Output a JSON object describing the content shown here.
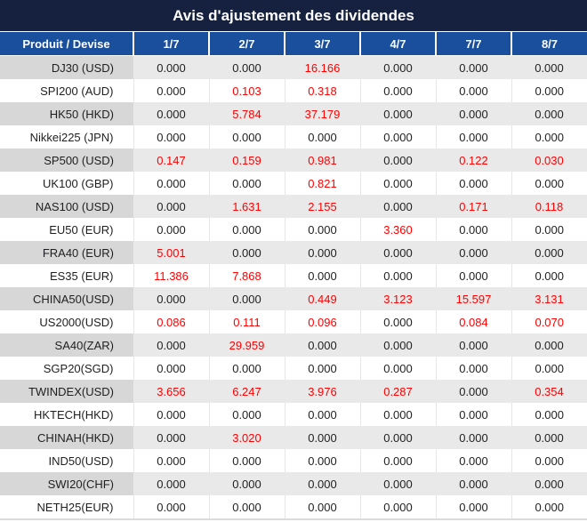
{
  "title": "Avis d'ajustement des dividendes",
  "table": {
    "columns": [
      "Produit / Devise",
      "1/7",
      "2/7",
      "3/7",
      "4/7",
      "7/7",
      "8/7"
    ],
    "zero_value": "0.000",
    "rows": [
      {
        "label": "DJ30 (USD)",
        "values": [
          "0.000",
          "0.000",
          "16.166",
          "0.000",
          "0.000",
          "0.000"
        ]
      },
      {
        "label": "SPI200 (AUD)",
        "values": [
          "0.000",
          "0.103",
          "0.318",
          "0.000",
          "0.000",
          "0.000"
        ]
      },
      {
        "label": "HK50 (HKD)",
        "values": [
          "0.000",
          "5.784",
          "37.179",
          "0.000",
          "0.000",
          "0.000"
        ]
      },
      {
        "label": "Nikkei225 (JPN)",
        "values": [
          "0.000",
          "0.000",
          "0.000",
          "0.000",
          "0.000",
          "0.000"
        ]
      },
      {
        "label": "SP500 (USD)",
        "values": [
          "0.147",
          "0.159",
          "0.981",
          "0.000",
          "0.122",
          "0.030"
        ]
      },
      {
        "label": "UK100 (GBP)",
        "values": [
          "0.000",
          "0.000",
          "0.821",
          "0.000",
          "0.000",
          "0.000"
        ]
      },
      {
        "label": "NAS100 (USD)",
        "values": [
          "0.000",
          "1.631",
          "2.155",
          "0.000",
          "0.171",
          "0.118"
        ]
      },
      {
        "label": "EU50 (EUR)",
        "values": [
          "0.000",
          "0.000",
          "0.000",
          "3.360",
          "0.000",
          "0.000"
        ]
      },
      {
        "label": "FRA40 (EUR)",
        "values": [
          "5.001",
          "0.000",
          "0.000",
          "0.000",
          "0.000",
          "0.000"
        ]
      },
      {
        "label": "ES35 (EUR)",
        "values": [
          "11.386",
          "7.868",
          "0.000",
          "0.000",
          "0.000",
          "0.000"
        ]
      },
      {
        "label": "CHINA50(USD)",
        "values": [
          "0.000",
          "0.000",
          "0.449",
          "3.123",
          "15.597",
          "3.131"
        ]
      },
      {
        "label": "US2000(USD)",
        "values": [
          "0.086",
          "0.111",
          "0.096",
          "0.000",
          "0.084",
          "0.070"
        ]
      },
      {
        "label": "SA40(ZAR)",
        "values": [
          "0.000",
          "29.959",
          "0.000",
          "0.000",
          "0.000",
          "0.000"
        ]
      },
      {
        "label": "SGP20(SGD)",
        "values": [
          "0.000",
          "0.000",
          "0.000",
          "0.000",
          "0.000",
          "0.000"
        ]
      },
      {
        "label": "TWINDEX(USD)",
        "values": [
          "3.656",
          "6.247",
          "3.976",
          "0.287",
          "0.000",
          "0.354"
        ]
      },
      {
        "label": "HKTECH(HKD)",
        "values": [
          "0.000",
          "0.000",
          "0.000",
          "0.000",
          "0.000",
          "0.000"
        ]
      },
      {
        "label": "CHINAH(HKD)",
        "values": [
          "0.000",
          "3.020",
          "0.000",
          "0.000",
          "0.000",
          "0.000"
        ]
      },
      {
        "label": "IND50(USD)",
        "values": [
          "0.000",
          "0.000",
          "0.000",
          "0.000",
          "0.000",
          "0.000"
        ]
      },
      {
        "label": "SWI20(CHF)",
        "values": [
          "0.000",
          "0.000",
          "0.000",
          "0.000",
          "0.000",
          "0.000"
        ]
      },
      {
        "label": "NETH25(EUR)",
        "values": [
          "0.000",
          "0.000",
          "0.000",
          "0.000",
          "0.000",
          "0.000"
        ]
      }
    ]
  },
  "colors": {
    "title_bg": "#15213F",
    "header_bg": "#1A4F9D",
    "highlight": "#FE0000",
    "label_alt_bg": "#D7D7D8",
    "row_alt_bg": "#E9E9E9",
    "text": "#1F1F1F",
    "grid_line": "#E6E6E6"
  }
}
